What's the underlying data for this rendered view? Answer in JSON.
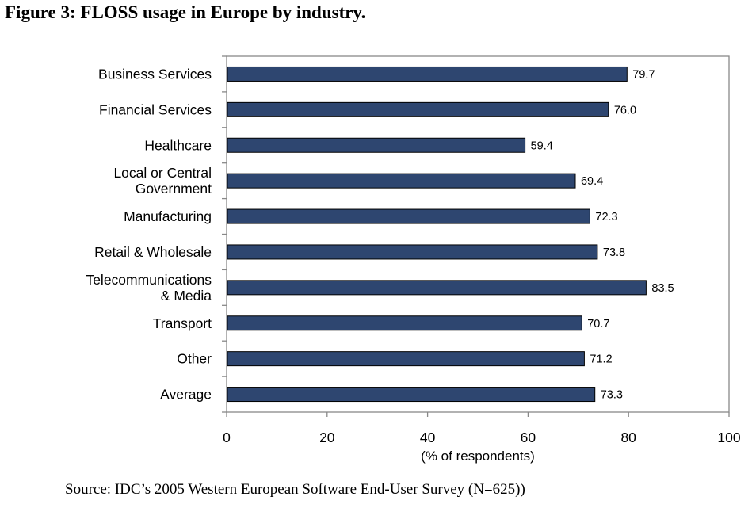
{
  "figure": {
    "title": "Figure 3: FLOSS usage in Europe by industry.",
    "source": "Source: IDC’s 2005 Western European Software End-User Survey (N=625))"
  },
  "chart_data": {
    "type": "bar",
    "orientation": "horizontal",
    "categories": [
      "Business Services",
      "Financial Services",
      "Healthcare",
      "Local or Central\nGovernment",
      "Manufacturing",
      "Retail & Wholesale",
      "Telecommunications\n& Media",
      "Transport",
      "Other",
      "Average"
    ],
    "values": [
      79.7,
      76.0,
      59.4,
      69.4,
      72.3,
      73.8,
      83.5,
      70.7,
      71.2,
      73.3
    ],
    "data_labels": [
      "79.7",
      "76.0",
      "59.4",
      "69.4",
      "72.3",
      "73.8",
      "83.5",
      "70.7",
      "71.2",
      "73.3"
    ],
    "xlabel": "(% of respondents)",
    "ylabel": "",
    "xlim": [
      0,
      100
    ],
    "xticks": [
      0,
      20,
      40,
      60,
      80,
      100
    ],
    "grid": false,
    "legend": "none",
    "bar_color": "#2e4670"
  }
}
